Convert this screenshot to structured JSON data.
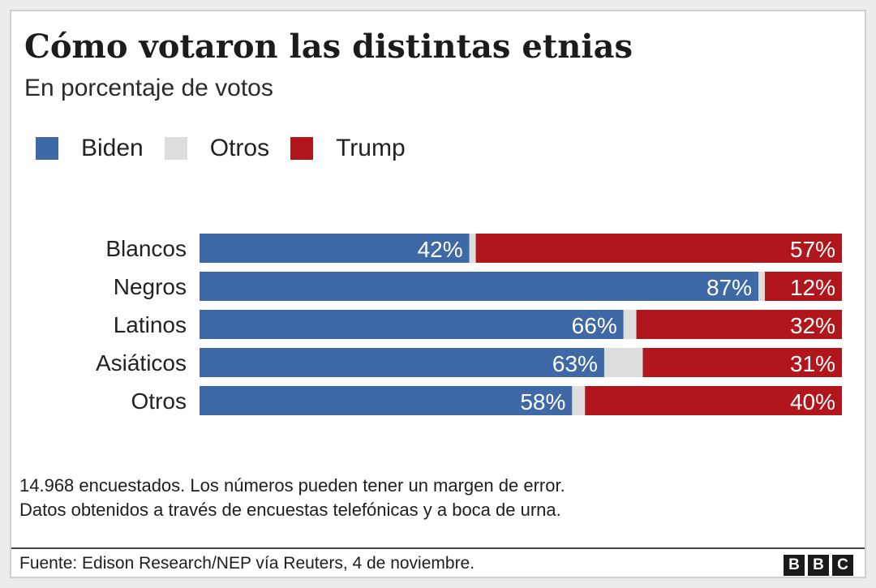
{
  "chart_data": {
    "type": "bar",
    "orientation": "horizontal",
    "stacked": true,
    "title": "Cómo votaron las distintas etnias",
    "subtitle": "En porcentaje de votos",
    "categories": [
      "Blancos",
      "Negros",
      "Latinos",
      "Asiáticos",
      "Otros"
    ],
    "series": [
      {
        "name": "Biden",
        "color": "#3f69a6",
        "values": [
          42,
          87,
          66,
          63,
          58
        ],
        "labels": [
          "42%",
          "87%",
          "66%",
          "63%",
          "58%"
        ]
      },
      {
        "name": "Otros",
        "color": "#dddddd",
        "values": [
          1,
          1,
          2,
          6,
          2
        ],
        "labels": [
          "",
          "",
          "",
          "",
          ""
        ]
      },
      {
        "name": "Trump",
        "color": "#b0161c",
        "values": [
          57,
          12,
          32,
          31,
          40
        ],
        "labels": [
          "57%",
          "12%",
          "32%",
          "31%",
          "40%"
        ]
      }
    ],
    "xlim": [
      0,
      100
    ],
    "legend": "top-left"
  },
  "legend_items": [
    {
      "label": "Biden",
      "color": "#3f69a6"
    },
    {
      "label": "Otros",
      "color": "#dddddd"
    },
    {
      "label": "Trump",
      "color": "#b0161c"
    }
  ],
  "footer": {
    "note_line1": "14.968 encuestados. Los números pueden tener un margen de error.",
    "note_line2": "Datos obtenidos a través de encuestas telefónicas y a boca de urna.",
    "source": "Fuente:  Edison Research/NEP vía Reuters, 4 de noviembre.",
    "logo": [
      "B",
      "B",
      "C"
    ]
  }
}
